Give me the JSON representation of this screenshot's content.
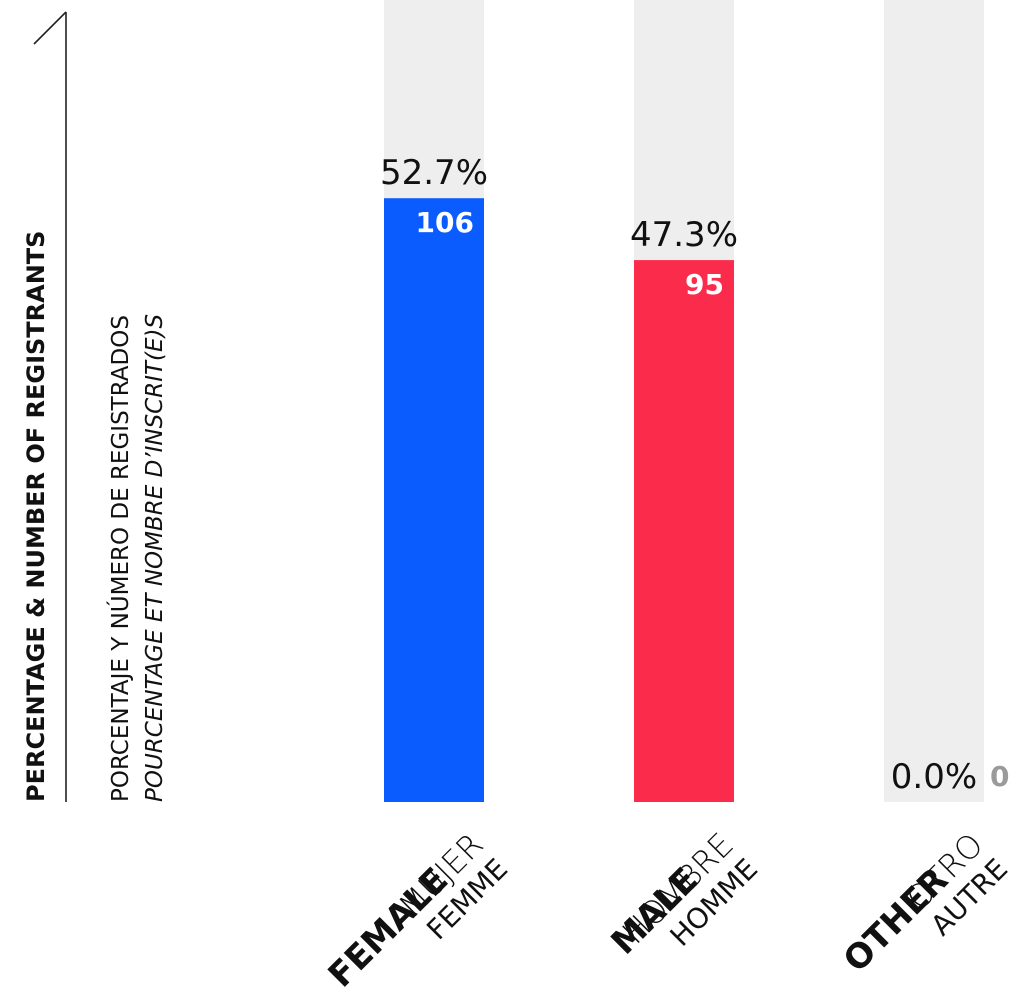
{
  "chart_data": {
    "type": "bar",
    "title": "PERCENTAGE & NUMBER OF REGISTRANTS",
    "subtitle_es": "PORCENTAJE Y NÚMERO DE REGISTRADOS",
    "subtitle_fr": "POURCENTAGE ET NOMBRE D’INSCRIT(E)S",
    "categories": [
      {
        "en": "FEMALE",
        "es": "MUJER",
        "fr": "FEMME"
      },
      {
        "en": "MALE",
        "es": "HOMBRE",
        "fr": "HOMME"
      },
      {
        "en": "OTHER",
        "es": "OTRO",
        "fr": "AUTRE"
      }
    ],
    "percent_values": [
      52.7,
      47.3,
      0.0
    ],
    "percent_labels": [
      "52.7%",
      "47.3%",
      "0.0%"
    ],
    "count_values": [
      106,
      95,
      0
    ],
    "ylim": [
      0,
      70
    ],
    "colors": [
      "#0a5cff",
      "#fb2b4b",
      "#eeeeee"
    ],
    "background_bar_color": "#eeeeee",
    "grid": false
  }
}
